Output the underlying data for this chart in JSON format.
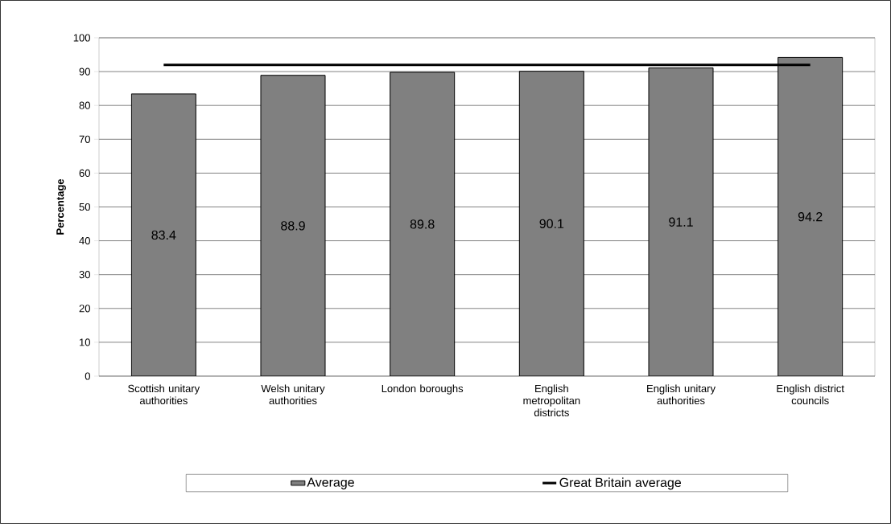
{
  "chart_data": {
    "type": "bar",
    "ylabel": "Percentage",
    "categories": [
      "Scottish unitary authorities",
      "Welsh unitary authorities",
      "London boroughs",
      "English metropolitan districts",
      "English unitary authorities",
      "English district councils"
    ],
    "series": [
      {
        "name": "Average",
        "color": "#808080",
        "values": [
          83.4,
          88.9,
          89.8,
          90.1,
          91.1,
          94.2
        ],
        "value_labels": [
          "83.4",
          "88.9",
          "89.8",
          "90.1",
          "91.1",
          "94.2"
        ]
      },
      {
        "name": "Great Britain average",
        "type": "line",
        "color": "#000000",
        "values": [
          92,
          92,
          92,
          92,
          92,
          92
        ]
      }
    ],
    "ylim": [
      0,
      100
    ],
    "yticks": [
      0,
      10,
      20,
      30,
      40,
      50,
      60,
      70,
      80,
      90,
      100
    ],
    "grid": "y",
    "legend": "bottom"
  }
}
